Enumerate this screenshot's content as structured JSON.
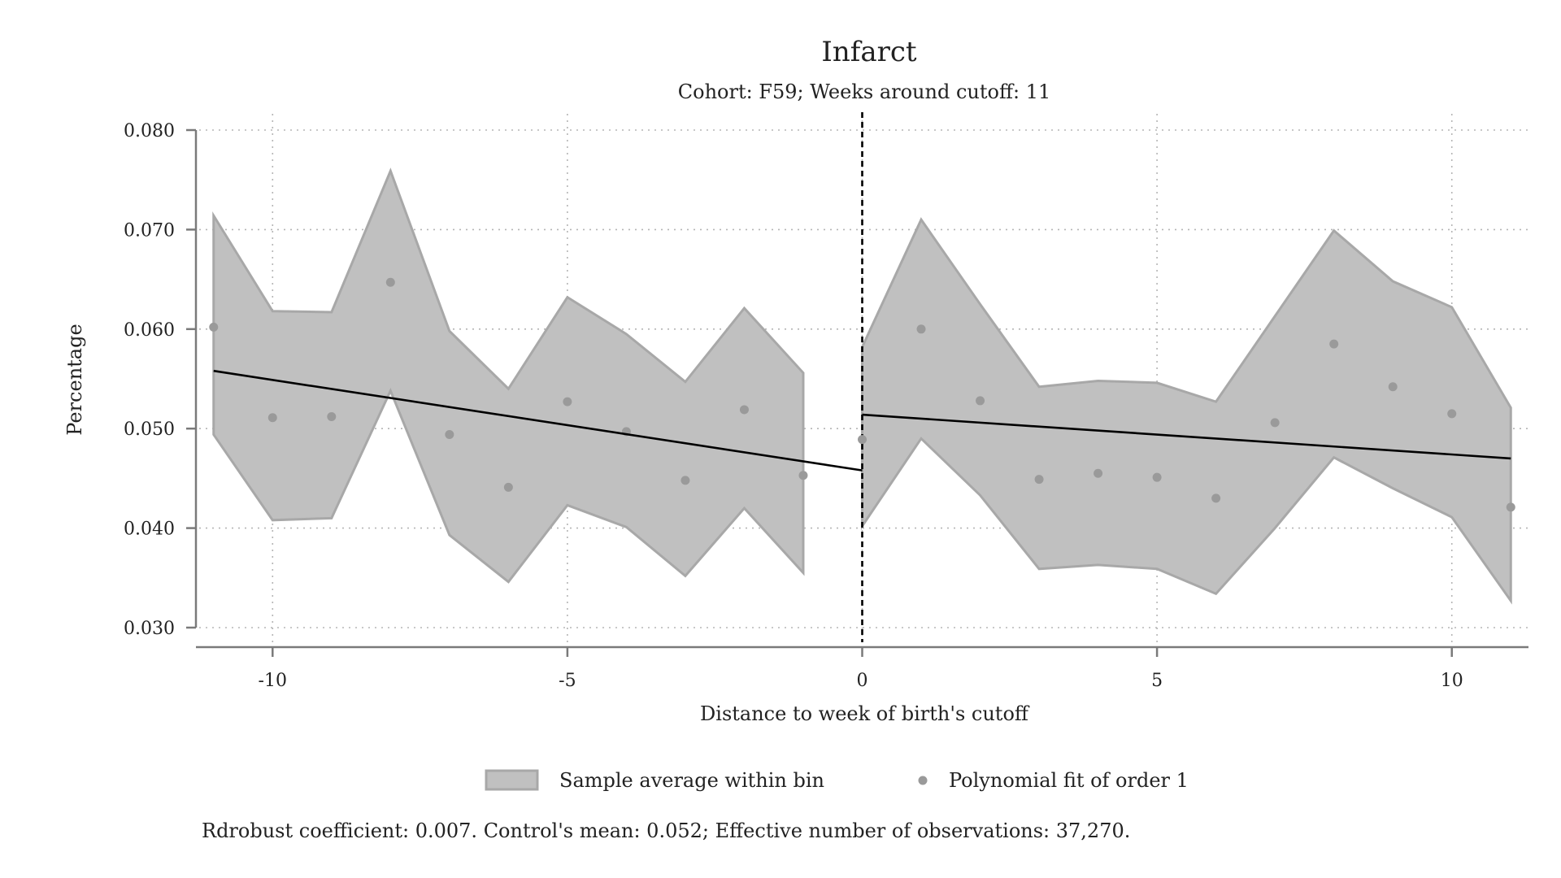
{
  "colors": {
    "band_fill": "#c0c0c0",
    "band_stroke": "#a8a8a8",
    "point": "#9a9a9a",
    "fit_line": "#000000",
    "axis": "#7a7a7a",
    "grid": "#b5b5b5",
    "cutoff_line": "#000000"
  },
  "chart_data": {
    "type": "scatter",
    "title": "Infarct",
    "subtitle": "Cohort: F59; Weeks around cutoff: 11",
    "xlabel": "Distance to week of birth's cutoff",
    "ylabel": "Percentage",
    "xlim": [
      -11.3,
      11.3
    ],
    "ylim": [
      0.03,
      0.08
    ],
    "xticks": [
      -10,
      -5,
      0,
      5,
      10
    ],
    "xtick_labels": [
      "-10",
      "-5",
      "0",
      "5",
      "10"
    ],
    "yticks": [
      0.03,
      0.04,
      0.05,
      0.06,
      0.07,
      0.08
    ],
    "ytick_labels": [
      "0.030",
      "0.040",
      "0.050",
      "0.060",
      "0.070",
      "0.080"
    ],
    "grid": true,
    "cutoff": 0,
    "legend": {
      "position": "bottom",
      "entries": [
        "Sample average within bin",
        "Polynomial fit of order 1"
      ]
    },
    "note": "Rdrobust coefficient: 0.007. Control's mean: 0.052; Effective number of observations: 37,270.",
    "points": {
      "x": [
        -11,
        -10,
        -9,
        -8,
        -7,
        -6,
        -5,
        -4,
        -3,
        -2,
        -1,
        0,
        1,
        2,
        3,
        4,
        5,
        6,
        7,
        8,
        9,
        10,
        11
      ],
      "y": [
        0.0602,
        0.0511,
        0.0512,
        0.0647,
        0.0494,
        0.0441,
        0.0527,
        0.0497,
        0.0448,
        0.0519,
        0.0453,
        0.0489,
        0.06,
        0.0528,
        0.0449,
        0.0455,
        0.0451,
        0.043,
        0.0506,
        0.0585,
        0.0542,
        0.0515,
        0.0421
      ]
    },
    "bands": [
      {
        "side": "left",
        "x": [
          -11,
          -10,
          -9,
          -8,
          -7,
          -6,
          -5,
          -4,
          -3,
          -2,
          -1
        ],
        "upper": [
          0.0714,
          0.0618,
          0.0617,
          0.0759,
          0.0598,
          0.054,
          0.0632,
          0.0595,
          0.0547,
          0.0621,
          0.0556
        ],
        "lower": [
          0.0494,
          0.0408,
          0.041,
          0.0538,
          0.0393,
          0.0346,
          0.0423,
          0.0401,
          0.0352,
          0.042,
          0.0355
        ]
      },
      {
        "side": "right",
        "x": [
          0,
          1,
          2,
          3,
          4,
          5,
          6,
          7,
          8,
          9,
          10,
          11
        ],
        "upper": [
          0.0582,
          0.071,
          0.0625,
          0.0542,
          0.0548,
          0.0546,
          0.0527,
          0.0613,
          0.0699,
          0.0648,
          0.0622,
          0.0521
        ],
        "lower": [
          0.0402,
          0.049,
          0.0433,
          0.0359,
          0.0363,
          0.0359,
          0.0334,
          0.04,
          0.0471,
          0.044,
          0.0411,
          0.0327
        ]
      }
    ],
    "fit_lines": [
      {
        "side": "left",
        "x": [
          -11,
          0
        ],
        "y": [
          0.0558,
          0.0458
        ]
      },
      {
        "side": "right",
        "x": [
          0,
          11
        ],
        "y": [
          0.0514,
          0.047
        ]
      }
    ]
  }
}
